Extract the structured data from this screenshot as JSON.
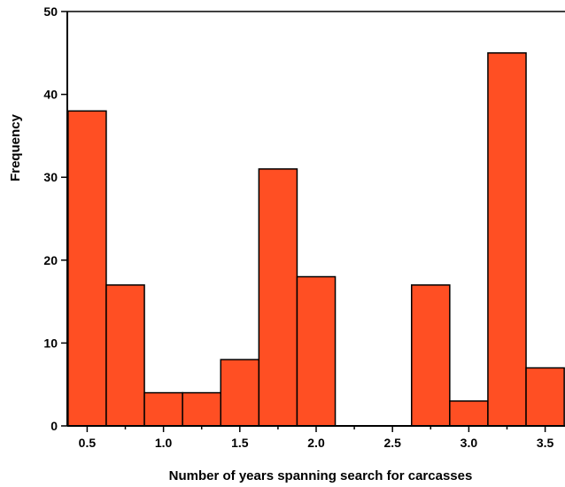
{
  "chart_data": {
    "type": "bar",
    "title": "",
    "xlabel": "Number of years spanning search for carcasses",
    "ylabel": "Frequency",
    "bins": [
      {
        "start": 0.375,
        "end": 0.625,
        "value": 38
      },
      {
        "start": 0.625,
        "end": 0.875,
        "value": 17
      },
      {
        "start": 0.875,
        "end": 1.125,
        "value": 4
      },
      {
        "start": 1.125,
        "end": 1.375,
        "value": 4
      },
      {
        "start": 1.375,
        "end": 1.625,
        "value": 8
      },
      {
        "start": 1.625,
        "end": 1.875,
        "value": 31
      },
      {
        "start": 1.875,
        "end": 2.125,
        "value": 18
      },
      {
        "start": 2.125,
        "end": 2.375,
        "value": 0
      },
      {
        "start": 2.375,
        "end": 2.625,
        "value": 0
      },
      {
        "start": 2.625,
        "end": 2.875,
        "value": 17
      },
      {
        "start": 2.875,
        "end": 3.125,
        "value": 3
      },
      {
        "start": 3.125,
        "end": 3.375,
        "value": 45
      },
      {
        "start": 3.375,
        "end": 3.625,
        "value": 7
      }
    ],
    "xlim": [
      0.37,
      3.63
    ],
    "ylim": [
      0,
      50
    ],
    "x_ticks": [
      0.5,
      1.0,
      1.5,
      2.0,
      2.5,
      3.0,
      3.5
    ],
    "x_tick_labels": [
      "0.5",
      "1.0",
      "1.5",
      "2.0",
      "2.5",
      "3.0",
      "3.5"
    ],
    "x_minor_ticks": [
      0.75,
      1.25,
      1.75,
      2.25,
      2.75,
      3.25
    ],
    "y_ticks": [
      0,
      10,
      20,
      30,
      40,
      50
    ],
    "y_tick_labels": [
      "0",
      "10",
      "20",
      "30",
      "40",
      "50"
    ],
    "grid": false,
    "colors": {
      "bar_fill": "#FF4F23",
      "bar_stroke": "#000000"
    }
  }
}
